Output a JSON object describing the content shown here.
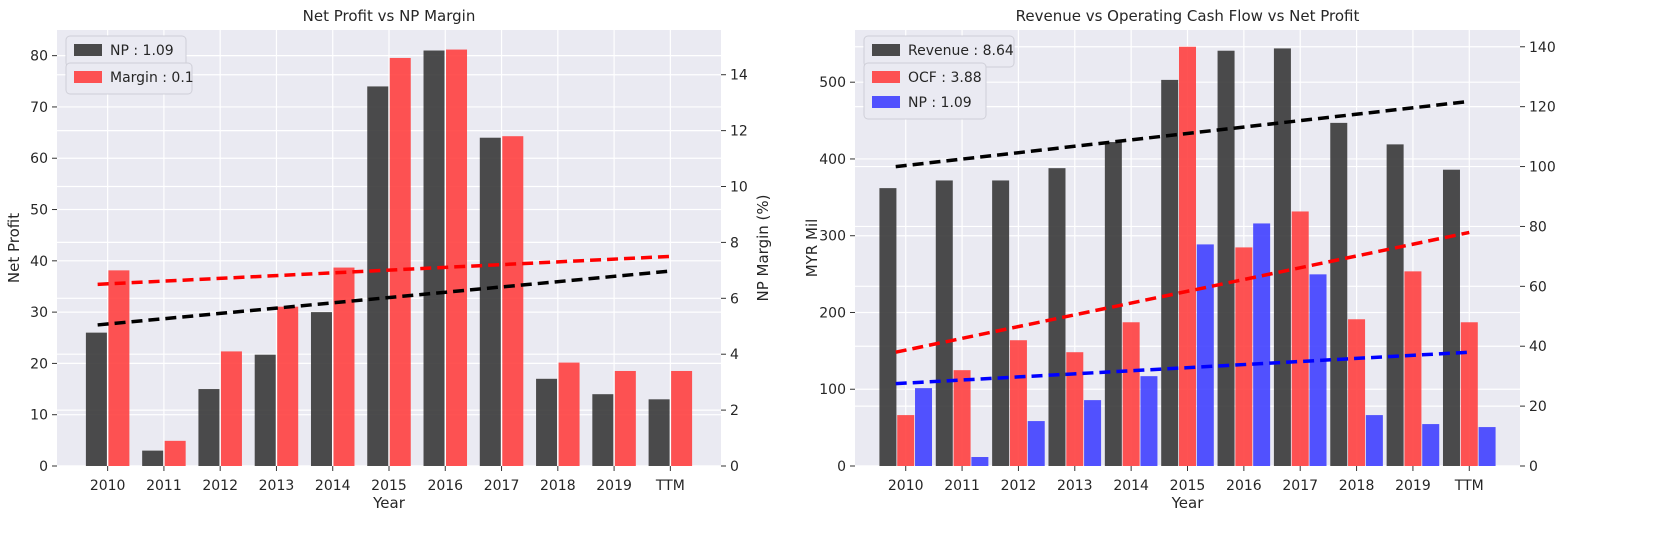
{
  "chart_data": [
    {
      "type": "bar",
      "title": "Net Profit vs NP Margin",
      "xlabel": "Year",
      "ylabel": "Net Profit",
      "y2label": "NP Margin (%)",
      "categories": [
        "2010",
        "2011",
        "2012",
        "2013",
        "2014",
        "2015",
        "2016",
        "2017",
        "2018",
        "2019",
        "TTM"
      ],
      "ylim": [
        0,
        85
      ],
      "y2lim": [
        0,
        15.6
      ],
      "yticks": [
        0,
        10,
        20,
        30,
        40,
        50,
        60,
        70,
        80
      ],
      "y2ticks": [
        0,
        2,
        4,
        6,
        8,
        10,
        12,
        14
      ],
      "grid": true,
      "legend_position": "top-left",
      "series": [
        {
          "name": "NP : 1.09",
          "axis": "left",
          "color": "#333333",
          "values": [
            26,
            3,
            15,
            21.7,
            30,
            74,
            81,
            64,
            17,
            14,
            13
          ]
        },
        {
          "name": "Margin : 0.1",
          "axis": "right",
          "color": "#ff3b3b",
          "values": [
            7.0,
            0.9,
            4.1,
            5.7,
            7.1,
            14.6,
            14.9,
            11.8,
            3.7,
            3.4,
            3.4
          ]
        }
      ],
      "trendlines": [
        {
          "axis": "left",
          "color": "#000000",
          "from": [
            "2010",
            27.5
          ],
          "to": [
            "TTM",
            38
          ]
        },
        {
          "axis": "right",
          "color": "#ff0000",
          "from": [
            "2010",
            6.5
          ],
          "to": [
            "TTM",
            7.5
          ]
        }
      ]
    },
    {
      "type": "bar",
      "title": "Revenue vs Operating Cash Flow vs Net Profit",
      "xlabel": "Year",
      "ylabel": "MYR Mil",
      "categories": [
        "2010",
        "2011",
        "2012",
        "2013",
        "2014",
        "2015",
        "2016",
        "2017",
        "2018",
        "2019",
        "TTM"
      ],
      "ylim": [
        0,
        568
      ],
      "y2lim": [
        0,
        145.6
      ],
      "yticks": [
        0,
        100,
        200,
        300,
        400,
        500
      ],
      "y2ticks": [
        0,
        20,
        40,
        60,
        80,
        100,
        120,
        140
      ],
      "grid": true,
      "legend_position": "top-left",
      "series": [
        {
          "name": "Revenue : 8.64",
          "axis": "left",
          "color": "#333333",
          "values": [
            362,
            372,
            372,
            388,
            422,
            503,
            541,
            544,
            447,
            419,
            386
          ]
        },
        {
          "name": "OCF : 3.88",
          "axis": "right",
          "color": "#ff3b3b",
          "values": [
            17,
            32,
            42,
            38,
            48,
            140,
            73,
            85,
            49,
            65,
            48
          ]
        },
        {
          "name": "NP : 1.09",
          "axis": "right",
          "color": "#3b3bff",
          "values": [
            26,
            3,
            15,
            22,
            30,
            74,
            81,
            64,
            17,
            14,
            13
          ]
        }
      ],
      "trendlines": [
        {
          "axis": "left",
          "color": "#000000",
          "from": [
            "2010",
            390
          ],
          "to": [
            "TTM",
            475
          ]
        },
        {
          "axis": "right",
          "color": "#ff0000",
          "from": [
            "2010",
            38
          ],
          "to": [
            "TTM",
            78
          ]
        },
        {
          "axis": "right",
          "color": "#0000ff",
          "from": [
            "2010",
            27.5
          ],
          "to": [
            "TTM",
            38
          ]
        }
      ]
    }
  ]
}
